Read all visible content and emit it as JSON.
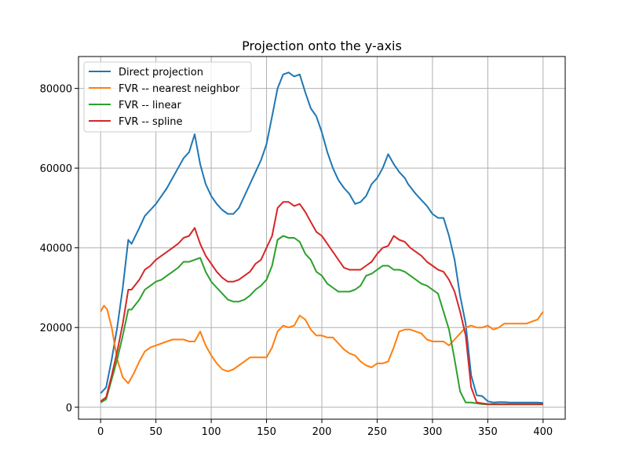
{
  "chart_data": {
    "type": "line",
    "title": "Projection onto the y-axis",
    "xlabel": "",
    "ylabel": "",
    "xlim": [
      -20,
      420
    ],
    "ylim": [
      -3000,
      88000
    ],
    "xticks": [
      0,
      50,
      100,
      150,
      200,
      250,
      300,
      350,
      400
    ],
    "yticks": [
      0,
      20000,
      40000,
      60000,
      80000
    ],
    "grid": true,
    "legend_position": "top-left",
    "series": [
      {
        "name": "Direct projection",
        "color": "#1f77b4",
        "x": [
          0,
          5,
          10,
          15,
          20,
          25,
          28,
          35,
          40,
          45,
          50,
          55,
          60,
          65,
          70,
          75,
          80,
          85,
          90,
          95,
          100,
          105,
          110,
          115,
          120,
          125,
          130,
          135,
          140,
          145,
          150,
          155,
          160,
          165,
          170,
          175,
          180,
          185,
          190,
          195,
          200,
          205,
          210,
          215,
          220,
          225,
          230,
          235,
          240,
          245,
          250,
          255,
          260,
          265,
          270,
          275,
          278,
          285,
          290,
          295,
          300,
          305,
          310,
          315,
          320,
          325,
          330,
          335,
          340,
          345,
          350,
          355,
          360,
          365,
          370,
          375,
          380,
          385,
          390,
          395,
          400
        ],
        "y": [
          3500,
          5000,
          12000,
          20000,
          30000,
          42000,
          41000,
          45000,
          48000,
          49500,
          51000,
          53000,
          55000,
          57500,
          60000,
          62500,
          64000,
          68500,
          61000,
          56000,
          53000,
          51000,
          49500,
          48500,
          48500,
          50000,
          53000,
          56000,
          59000,
          62000,
          66000,
          73000,
          80000,
          83500,
          84000,
          83000,
          83500,
          79000,
          75000,
          73000,
          69000,
          64000,
          60000,
          57000,
          55000,
          53500,
          51000,
          51500,
          53000,
          56000,
          57500,
          60000,
          63500,
          61000,
          59000,
          57500,
          56000,
          53500,
          52000,
          50500,
          48500,
          47500,
          47500,
          43000,
          37000,
          28000,
          21000,
          8000,
          3000,
          2800,
          1500,
          1200,
          1300,
          1300,
          1200,
          1200,
          1200,
          1200,
          1200,
          1200,
          1100
        ]
      },
      {
        "name": "FVR -- nearest neighbor",
        "color": "#ff7f0e",
        "x": [
          0,
          3,
          6,
          10,
          15,
          20,
          25,
          30,
          35,
          40,
          45,
          50,
          55,
          60,
          65,
          70,
          75,
          80,
          85,
          90,
          95,
          100,
          105,
          110,
          115,
          120,
          125,
          130,
          135,
          140,
          145,
          150,
          155,
          160,
          165,
          170,
          175,
          180,
          185,
          190,
          195,
          200,
          205,
          210,
          215,
          220,
          225,
          230,
          235,
          240,
          245,
          250,
          255,
          260,
          265,
          270,
          275,
          280,
          285,
          290,
          295,
          300,
          305,
          310,
          315,
          320,
          325,
          330,
          335,
          340,
          345,
          350,
          355,
          360,
          365,
          370,
          375,
          380,
          385,
          390,
          395,
          400
        ],
        "y": [
          24000,
          25500,
          24500,
          20000,
          12000,
          7500,
          6000,
          8500,
          11500,
          14000,
          15000,
          15500,
          16000,
          16500,
          17000,
          17000,
          17000,
          16500,
          16500,
          19000,
          15500,
          13000,
          11000,
          9500,
          9000,
          9500,
          10500,
          11500,
          12500,
          12500,
          12500,
          12500,
          15000,
          19000,
          20500,
          20000,
          20500,
          23000,
          22000,
          19500,
          18000,
          18000,
          17500,
          17500,
          16000,
          14500,
          13500,
          13000,
          11500,
          10500,
          10000,
          11000,
          11000,
          11500,
          15000,
          19000,
          19500,
          19500,
          19000,
          18500,
          17000,
          16500,
          16500,
          16500,
          15500,
          17000,
          18500,
          20000,
          20500,
          20000,
          20000,
          20500,
          19500,
          20000,
          21000,
          21000,
          21000,
          21000,
          21000,
          21500,
          22000,
          24000
        ]
      },
      {
        "name": "FVR -- linear",
        "color": "#2ca02c",
        "x": [
          0,
          5,
          10,
          15,
          20,
          25,
          28,
          35,
          40,
          45,
          50,
          55,
          60,
          65,
          70,
          75,
          80,
          85,
          90,
          95,
          100,
          105,
          110,
          115,
          120,
          125,
          130,
          135,
          140,
          145,
          150,
          155,
          160,
          165,
          170,
          175,
          180,
          185,
          190,
          195,
          200,
          205,
          210,
          215,
          220,
          225,
          230,
          235,
          240,
          245,
          250,
          255,
          260,
          265,
          270,
          275,
          280,
          285,
          290,
          295,
          300,
          305,
          310,
          315,
          320,
          325,
          330,
          335,
          340,
          345,
          350,
          355,
          360,
          365,
          370,
          375,
          380,
          385,
          390,
          395,
          400
        ],
        "y": [
          1200,
          2000,
          7000,
          12000,
          18000,
          24500,
          24500,
          27000,
          29500,
          30500,
          31500,
          32000,
          33000,
          34000,
          35000,
          36500,
          36500,
          37000,
          37500,
          34000,
          31500,
          30000,
          28500,
          27000,
          26500,
          26500,
          27000,
          28000,
          29500,
          30500,
          32000,
          35500,
          42000,
          43000,
          42500,
          42500,
          41500,
          38500,
          37000,
          34000,
          33000,
          31000,
          30000,
          29000,
          29000,
          29000,
          29500,
          30500,
          33000,
          33500,
          34500,
          35500,
          35500,
          34500,
          34500,
          34000,
          33000,
          32000,
          31000,
          30500,
          29500,
          28500,
          24000,
          19500,
          12000,
          4000,
          1200,
          1200,
          1000,
          800,
          700,
          700,
          700,
          700,
          700,
          700,
          700,
          700,
          700,
          700,
          700
        ]
      },
      {
        "name": "FVR -- spline",
        "color": "#d62728",
        "x": [
          0,
          5,
          10,
          15,
          20,
          25,
          28,
          35,
          40,
          45,
          50,
          55,
          60,
          65,
          70,
          75,
          80,
          85,
          90,
          95,
          100,
          105,
          110,
          115,
          120,
          125,
          130,
          135,
          140,
          145,
          150,
          155,
          160,
          165,
          170,
          175,
          180,
          185,
          190,
          195,
          200,
          205,
          210,
          215,
          220,
          225,
          230,
          235,
          240,
          245,
          250,
          255,
          260,
          265,
          270,
          275,
          280,
          285,
          290,
          295,
          300,
          305,
          310,
          315,
          320,
          325,
          330,
          335,
          340,
          345,
          350,
          355,
          360,
          365,
          370,
          375,
          380,
          385,
          390,
          395,
          400
        ],
        "y": [
          1500,
          2500,
          8000,
          14000,
          21000,
          29500,
          29500,
          32000,
          34500,
          35500,
          37000,
          38000,
          39000,
          40000,
          41000,
          42500,
          43000,
          45000,
          41000,
          38000,
          36000,
          34000,
          32500,
          31500,
          31500,
          32000,
          33000,
          34000,
          36000,
          37000,
          40000,
          43000,
          50000,
          51500,
          51500,
          50500,
          51000,
          49000,
          46500,
          44000,
          43000,
          41000,
          39000,
          37000,
          35000,
          34500,
          34500,
          34500,
          35500,
          36500,
          38500,
          40000,
          40500,
          43000,
          42000,
          41500,
          40000,
          39000,
          38000,
          36500,
          35500,
          34500,
          34000,
          32000,
          29000,
          24000,
          18000,
          5000,
          1200,
          1000,
          800,
          800,
          800,
          800,
          800,
          800,
          800,
          800,
          800,
          800,
          800
        ]
      }
    ]
  }
}
